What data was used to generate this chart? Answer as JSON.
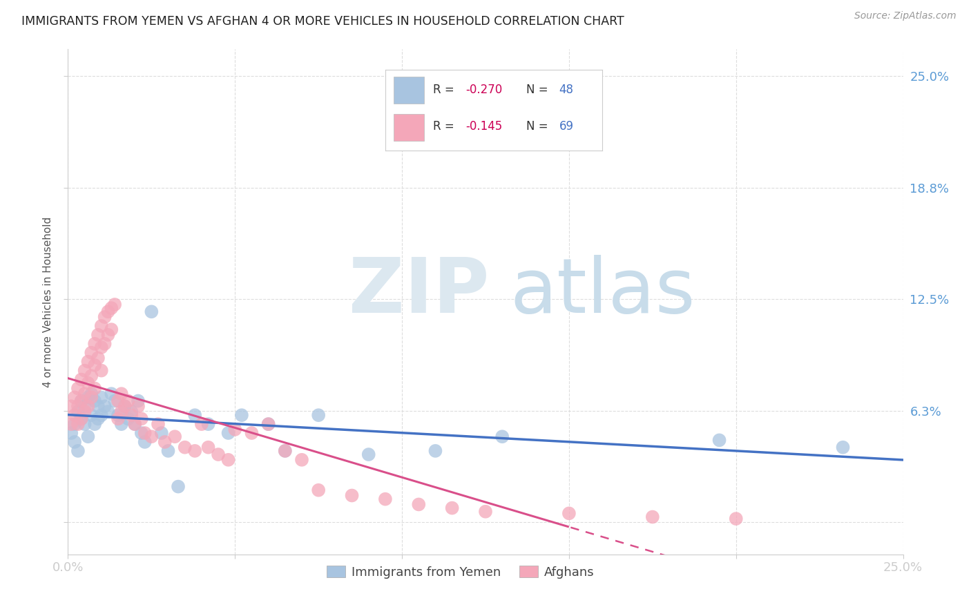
{
  "title": "IMMIGRANTS FROM YEMEN VS AFGHAN 4 OR MORE VEHICLES IN HOUSEHOLD CORRELATION CHART",
  "source": "Source: ZipAtlas.com",
  "ylabel": "4 or more Vehicles in Household",
  "xlim": [
    0.0,
    0.25
  ],
  "ylim": [
    -0.018,
    0.265
  ],
  "yticks": [
    0.0,
    0.0625,
    0.125,
    0.1875,
    0.25
  ],
  "ytick_labels": [
    "",
    "6.3%",
    "12.5%",
    "18.8%",
    "25.0%"
  ],
  "xticks": [
    0.0,
    0.05,
    0.1,
    0.15,
    0.2,
    0.25
  ],
  "xtick_labels": [
    "0.0%",
    "",
    "",
    "",
    "",
    "25.0%"
  ],
  "legend_r1": "-0.270",
  "legend_n1": "48",
  "legend_r2": "-0.145",
  "legend_n2": "69",
  "color_yemen": "#a8c4e0",
  "color_afghan": "#f4a7b9",
  "color_line_yemen": "#4472c4",
  "color_line_afghan": "#d94f8a",
  "color_tick_labels": "#5b9bd5",
  "color_legend_text": "#4472c4",
  "color_legend_rvalue": "#cc0055",
  "background": "#ffffff",
  "yemen_x": [
    0.001,
    0.002,
    0.002,
    0.003,
    0.003,
    0.004,
    0.004,
    0.005,
    0.005,
    0.006,
    0.006,
    0.007,
    0.007,
    0.008,
    0.008,
    0.009,
    0.009,
    0.01,
    0.01,
    0.011,
    0.012,
    0.013,
    0.014,
    0.015,
    0.016,
    0.017,
    0.018,
    0.019,
    0.02,
    0.021,
    0.022,
    0.023,
    0.025,
    0.028,
    0.03,
    0.033,
    0.038,
    0.042,
    0.048,
    0.052,
    0.06,
    0.065,
    0.075,
    0.09,
    0.11,
    0.13,
    0.195,
    0.232
  ],
  "yemen_y": [
    0.05,
    0.055,
    0.045,
    0.062,
    0.04,
    0.068,
    0.058,
    0.065,
    0.055,
    0.07,
    0.048,
    0.072,
    0.06,
    0.068,
    0.055,
    0.065,
    0.058,
    0.07,
    0.06,
    0.065,
    0.062,
    0.072,
    0.068,
    0.06,
    0.055,
    0.065,
    0.058,
    0.062,
    0.055,
    0.068,
    0.05,
    0.045,
    0.118,
    0.05,
    0.04,
    0.02,
    0.06,
    0.055,
    0.05,
    0.06,
    0.055,
    0.04,
    0.06,
    0.038,
    0.04,
    0.048,
    0.046,
    0.042
  ],
  "afghan_x": [
    0.001,
    0.001,
    0.002,
    0.002,
    0.003,
    0.003,
    0.003,
    0.004,
    0.004,
    0.004,
    0.005,
    0.005,
    0.005,
    0.006,
    0.006,
    0.006,
    0.007,
    0.007,
    0.007,
    0.008,
    0.008,
    0.008,
    0.009,
    0.009,
    0.01,
    0.01,
    0.01,
    0.011,
    0.011,
    0.012,
    0.012,
    0.013,
    0.013,
    0.014,
    0.015,
    0.015,
    0.016,
    0.016,
    0.017,
    0.018,
    0.019,
    0.02,
    0.021,
    0.022,
    0.023,
    0.025,
    0.027,
    0.029,
    0.032,
    0.035,
    0.038,
    0.04,
    0.042,
    0.045,
    0.048,
    0.05,
    0.055,
    0.06,
    0.065,
    0.07,
    0.075,
    0.085,
    0.095,
    0.105,
    0.115,
    0.125,
    0.15,
    0.175,
    0.2
  ],
  "afghan_y": [
    0.065,
    0.055,
    0.07,
    0.06,
    0.075,
    0.065,
    0.055,
    0.08,
    0.068,
    0.058,
    0.085,
    0.072,
    0.062,
    0.09,
    0.078,
    0.065,
    0.095,
    0.082,
    0.07,
    0.1,
    0.088,
    0.075,
    0.105,
    0.092,
    0.11,
    0.098,
    0.085,
    0.115,
    0.1,
    0.118,
    0.105,
    0.12,
    0.108,
    0.122,
    0.068,
    0.058,
    0.072,
    0.062,
    0.065,
    0.068,
    0.06,
    0.055,
    0.065,
    0.058,
    0.05,
    0.048,
    0.055,
    0.045,
    0.048,
    0.042,
    0.04,
    0.055,
    0.042,
    0.038,
    0.035,
    0.052,
    0.05,
    0.055,
    0.04,
    0.035,
    0.018,
    0.015,
    0.013,
    0.01,
    0.008,
    0.006,
    0.005,
    0.003,
    0.002
  ],
  "line_yemen_x0": 0.0,
  "line_yemen_x1": 0.25,
  "line_afghan_x0": 0.0,
  "line_afghan_x1": 0.25,
  "line_afghan_solid_end": 0.15
}
